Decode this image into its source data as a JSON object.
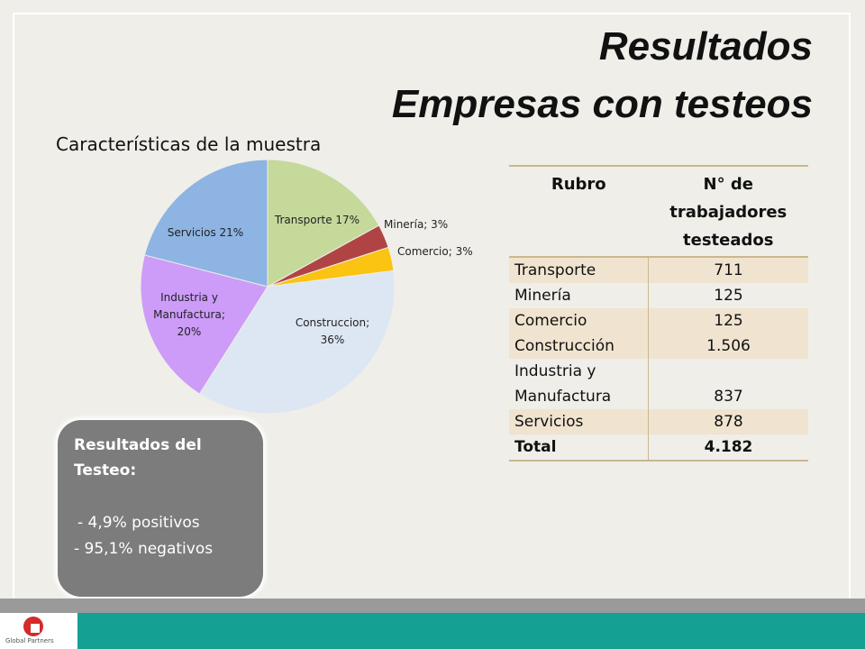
{
  "header": {
    "title_line1": "Resultados",
    "title_line2": "Empresas con testeos",
    "subtitle": "Características de la muestra"
  },
  "chart_data": {
    "type": "pie",
    "title": "",
    "slices": [
      {
        "label": "Transporte 17%",
        "value": 17,
        "color": "#c5d99b"
      },
      {
        "label": "Minería; 3%",
        "value": 3,
        "color": "#b04444"
      },
      {
        "label": "Comercio; 3%",
        "value": 3,
        "color": "#fbc312"
      },
      {
        "label": "Construccion; 36%",
        "value": 36,
        "color": "#dde6f3"
      },
      {
        "label": "Industria  y Manufactura; 20%",
        "value": 20,
        "color": "#cc9cf8"
      },
      {
        "label": "Servicios  21%",
        "value": 21,
        "color": "#8eb4e3"
      }
    ]
  },
  "table": {
    "headers": [
      "Rubro",
      "N° de trabajadores testeados"
    ],
    "rows": [
      {
        "rubro": "Transporte",
        "n": "711"
      },
      {
        "rubro": "Minería",
        "n": "125"
      },
      {
        "rubro": "Comercio",
        "n": "125"
      },
      {
        "rubro": "Construcción",
        "n": "1.506"
      },
      {
        "rubro": "Industria y Manufactura",
        "n": "837"
      },
      {
        "rubro": "Servicios",
        "n": "878"
      }
    ],
    "total": {
      "rubro": "Total",
      "n": "4.182"
    }
  },
  "results": {
    "title": "Resultados del Testeo:",
    "line1": "- 4,9%  positivos",
    "line2": "- 95,1% negativos"
  },
  "footer": {
    "logo_text": "Global Partners",
    "brand_color": "#14a092"
  }
}
